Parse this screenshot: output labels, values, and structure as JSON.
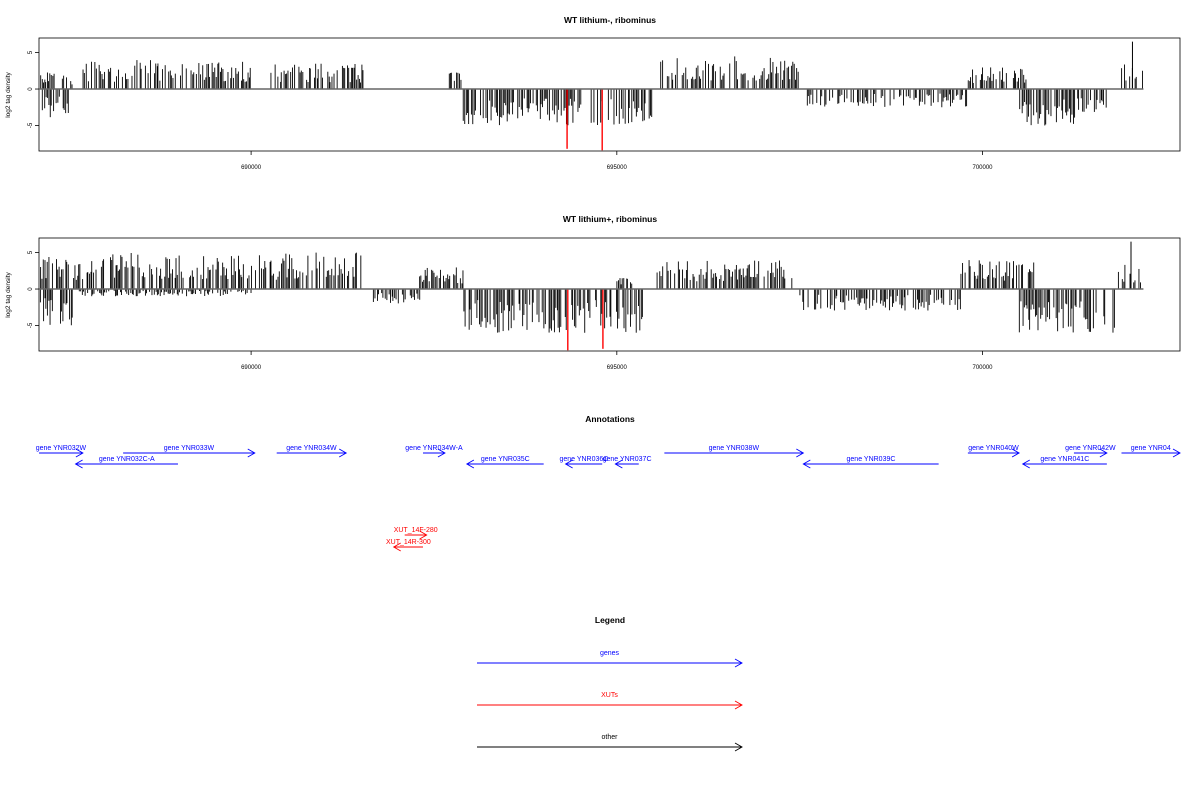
{
  "chart_data": [
    {
      "type": "bar",
      "title": "WT lithium-, ribominus",
      "ylabel": "log2 tag density",
      "xlabel": "",
      "xlim": [
        687100,
        702700
      ],
      "ylim": [
        -8.5,
        7
      ],
      "x_ticks": [
        690000,
        695000,
        700000
      ],
      "x_tick_labels": [
        "690000",
        "695000",
        "700000"
      ],
      "y_ticks": [
        5,
        0,
        -5
      ],
      "y_tick_labels": [
        "5",
        "0",
        "-5"
      ],
      "grid": false,
      "segments": [
        {
          "start": 687100,
          "end": 687500,
          "sign": -1,
          "amp": 4.0
        },
        {
          "start": 687100,
          "end": 687300,
          "sign": 1,
          "amp": 2.5
        },
        {
          "start": 687400,
          "end": 687550,
          "sign": 1,
          "amp": 2.0
        },
        {
          "start": 687700,
          "end": 690000,
          "sign": 1,
          "amp": 4.0
        },
        {
          "start": 690250,
          "end": 691550,
          "sign": 1,
          "amp": 3.5
        },
        {
          "start": 692700,
          "end": 692900,
          "sign": 1,
          "amp": 2.5
        },
        {
          "start": 692900,
          "end": 695500,
          "sign": -1,
          "amp": 5.0
        },
        {
          "start": 695600,
          "end": 697500,
          "sign": 1,
          "amp": 4.5
        },
        {
          "start": 697600,
          "end": 699800,
          "sign": -1,
          "amp": 2.5
        },
        {
          "start": 699800,
          "end": 700600,
          "sign": 1,
          "amp": 3.0
        },
        {
          "start": 700500,
          "end": 701700,
          "sign": -1,
          "amp": 5.0
        },
        {
          "start": 701900,
          "end": 702200,
          "sign": 1,
          "amp": 4.0
        }
      ],
      "highlights": [
        {
          "x": 694320,
          "value": -8.2,
          "color": "#ff0000"
        },
        {
          "x": 694800,
          "value": -8.4,
          "color": "#ff0000"
        }
      ],
      "peaks": [
        {
          "x": 702050,
          "value": 6.5
        }
      ]
    },
    {
      "type": "bar",
      "title": "WT lithium+, ribominus",
      "ylabel": "log2 tag density",
      "xlabel": "",
      "xlim": [
        687100,
        702700
      ],
      "ylim": [
        -8.5,
        7
      ],
      "x_ticks": [
        690000,
        695000,
        700000
      ],
      "x_tick_labels": [
        "690000",
        "695000",
        "700000"
      ],
      "y_ticks": [
        5,
        0,
        -5
      ],
      "y_tick_labels": [
        "5",
        "0",
        "-5"
      ],
      "grid": false,
      "segments": [
        {
          "start": 687100,
          "end": 687500,
          "sign": 1,
          "amp": 4.5
        },
        {
          "start": 687100,
          "end": 687550,
          "sign": -1,
          "amp": 5.0
        },
        {
          "start": 687550,
          "end": 691500,
          "sign": 1,
          "amp": 5.0
        },
        {
          "start": 687650,
          "end": 690000,
          "sign": -1,
          "amp": 1.0
        },
        {
          "start": 691650,
          "end": 692300,
          "sign": -1,
          "amp": 2.0
        },
        {
          "start": 692300,
          "end": 692900,
          "sign": 1,
          "amp": 3.0
        },
        {
          "start": 692900,
          "end": 695350,
          "sign": -1,
          "amp": 6.0
        },
        {
          "start": 695000,
          "end": 695250,
          "sign": 1,
          "amp": 1.5
        },
        {
          "start": 695550,
          "end": 697400,
          "sign": 1,
          "amp": 4.0
        },
        {
          "start": 697500,
          "end": 699700,
          "sign": -1,
          "amp": 3.0
        },
        {
          "start": 699700,
          "end": 700700,
          "sign": 1,
          "amp": 4.0
        },
        {
          "start": 700500,
          "end": 701800,
          "sign": -1,
          "amp": 6.0
        },
        {
          "start": 701850,
          "end": 702200,
          "sign": 1,
          "amp": 3.5
        }
      ],
      "highlights": [
        {
          "x": 694330,
          "value": -8.4,
          "color": "#ff0000"
        },
        {
          "x": 694810,
          "value": -8.2,
          "color": "#ff0000"
        }
      ],
      "peaks": [
        {
          "x": 702030,
          "value": 6.5
        }
      ]
    }
  ],
  "annotations": {
    "title": "Annotations",
    "items": [
      {
        "label": "gene YNR032W",
        "start": 687100,
        "end": 687700,
        "strand": "+",
        "row": 0,
        "color": "#0000ff"
      },
      {
        "label": "gene YNR032C-A",
        "start": 687600,
        "end": 689000,
        "strand": "-",
        "row": 1,
        "color": "#0000ff"
      },
      {
        "label": "gene YNR033W",
        "start": 688250,
        "end": 690050,
        "strand": "+",
        "row": 0,
        "color": "#0000ff"
      },
      {
        "label": "gene YNR034W",
        "start": 690350,
        "end": 691300,
        "strand": "+",
        "row": 0,
        "color": "#0000ff"
      },
      {
        "label": "gene YNR034W-A",
        "start": 692350,
        "end": 692650,
        "strand": "+",
        "row": 0,
        "color": "#0000ff"
      },
      {
        "label": "gene YNR035C",
        "start": 692950,
        "end": 694000,
        "strand": "-",
        "row": 1,
        "color": "#0000ff"
      },
      {
        "label": "gene YNR036C",
        "start": 694300,
        "end": 694800,
        "strand": "-",
        "row": 1,
        "color": "#0000ff"
      },
      {
        "label": "gene YNR037C",
        "start": 694980,
        "end": 695300,
        "strand": "-",
        "row": 1,
        "color": "#0000ff"
      },
      {
        "label": "gene YNR038W",
        "start": 695650,
        "end": 697550,
        "strand": "+",
        "row": 0,
        "color": "#0000ff"
      },
      {
        "label": "gene YNR039C",
        "start": 697550,
        "end": 699400,
        "strand": "-",
        "row": 1,
        "color": "#0000ff"
      },
      {
        "label": "gene YNR040W",
        "start": 699800,
        "end": 700500,
        "strand": "+",
        "row": 0,
        "color": "#0000ff"
      },
      {
        "label": "gene YNR041C",
        "start": 700550,
        "end": 701700,
        "strand": "-",
        "row": 1,
        "color": "#0000ff"
      },
      {
        "label": "gene YNR042W",
        "start": 701250,
        "end": 701700,
        "strand": "+",
        "row": 0,
        "color": "#0000ff"
      },
      {
        "label": "gene YNR04",
        "start": 701900,
        "end": 702700,
        "strand": "+",
        "row": 0,
        "color": "#0000ff"
      },
      {
        "label": "XUT_14F-280",
        "start": 692100,
        "end": 692400,
        "strand": "+",
        "row": 4,
        "color": "#ff0000"
      },
      {
        "label": "XUT_14R-300",
        "start": 691950,
        "end": 692350,
        "strand": "-",
        "row": 5,
        "color": "#ff0000"
      }
    ]
  },
  "legend": {
    "title": "Legend",
    "items": [
      {
        "label": "genes",
        "color": "#0000ff"
      },
      {
        "label": "XUTs",
        "color": "#ff0000"
      },
      {
        "label": "other",
        "color": "#000000"
      }
    ]
  }
}
